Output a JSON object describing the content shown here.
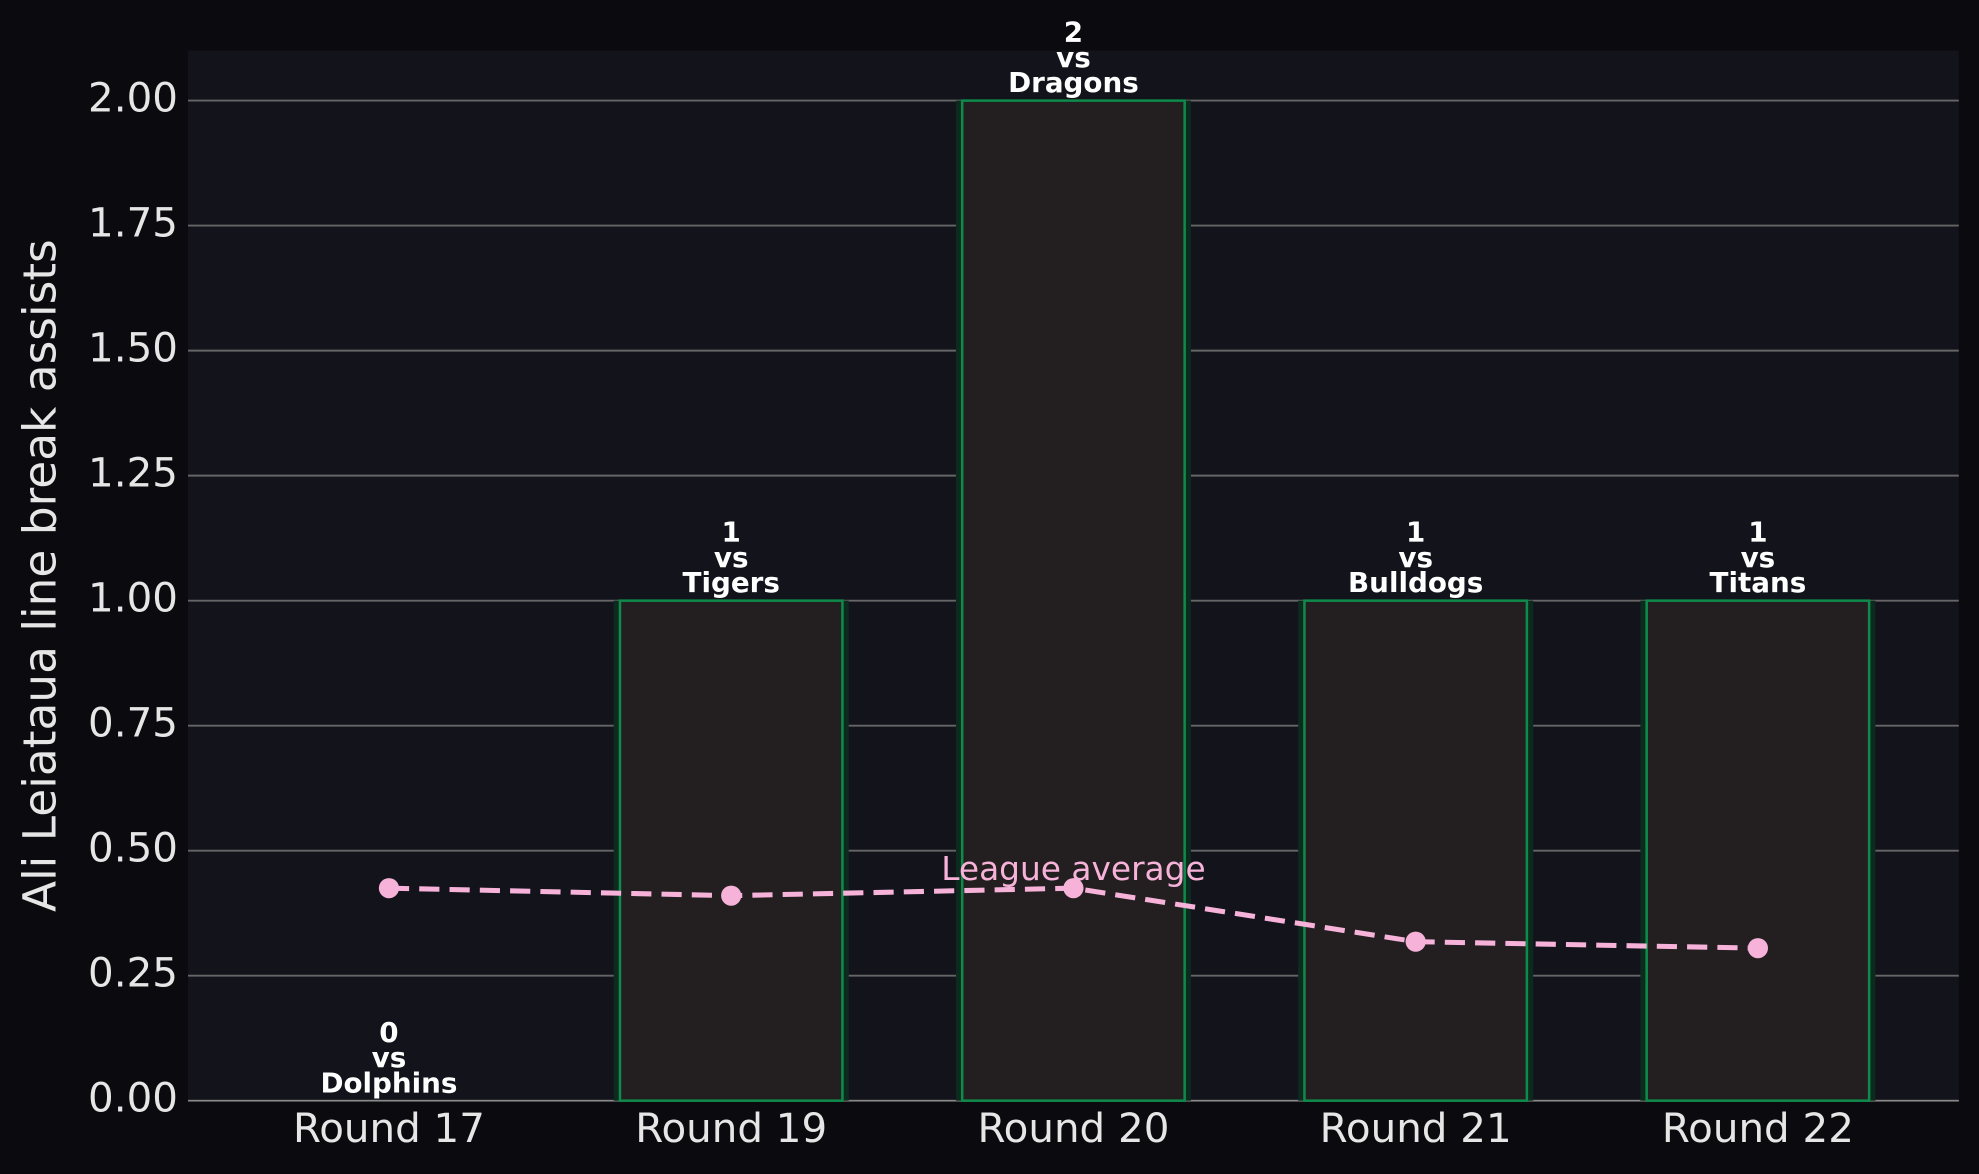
{
  "chart_data": {
    "type": "bar",
    "y_label": "Ali Leiataua line break assists",
    "categories": [
      "Round 17",
      "Round 19",
      "Round 20",
      "Round 21",
      "Round 22"
    ],
    "values": [
      0,
      1,
      2,
      1,
      1
    ],
    "connector": "vs",
    "opponents": [
      "Dolphins",
      "Tigers",
      "Dragons",
      "Bulldogs",
      "Titans"
    ],
    "color": "#231f20",
    "edge_color": "#0e8a4a",
    "average": {
      "name": "League average",
      "color": "#f7b2d9",
      "values": [
        0.425,
        0.41,
        0.425,
        0.318,
        0.305
      ]
    },
    "ylim": [
      0,
      2.1
    ],
    "yticks": [
      {
        "value": 0,
        "label": "0.00"
      },
      {
        "value": 0.25,
        "label": "0.25"
      },
      {
        "value": 0.5,
        "label": "0.50"
      },
      {
        "value": 0.75,
        "label": "0.75"
      },
      {
        "value": 1,
        "label": "1.00"
      },
      {
        "value": 1.25,
        "label": "1.25"
      },
      {
        "value": 1.5,
        "label": "1.50"
      },
      {
        "value": 1.75,
        "label": "1.75"
      },
      {
        "value": 2,
        "label": "2.00"
      }
    ],
    "grid": true
  }
}
